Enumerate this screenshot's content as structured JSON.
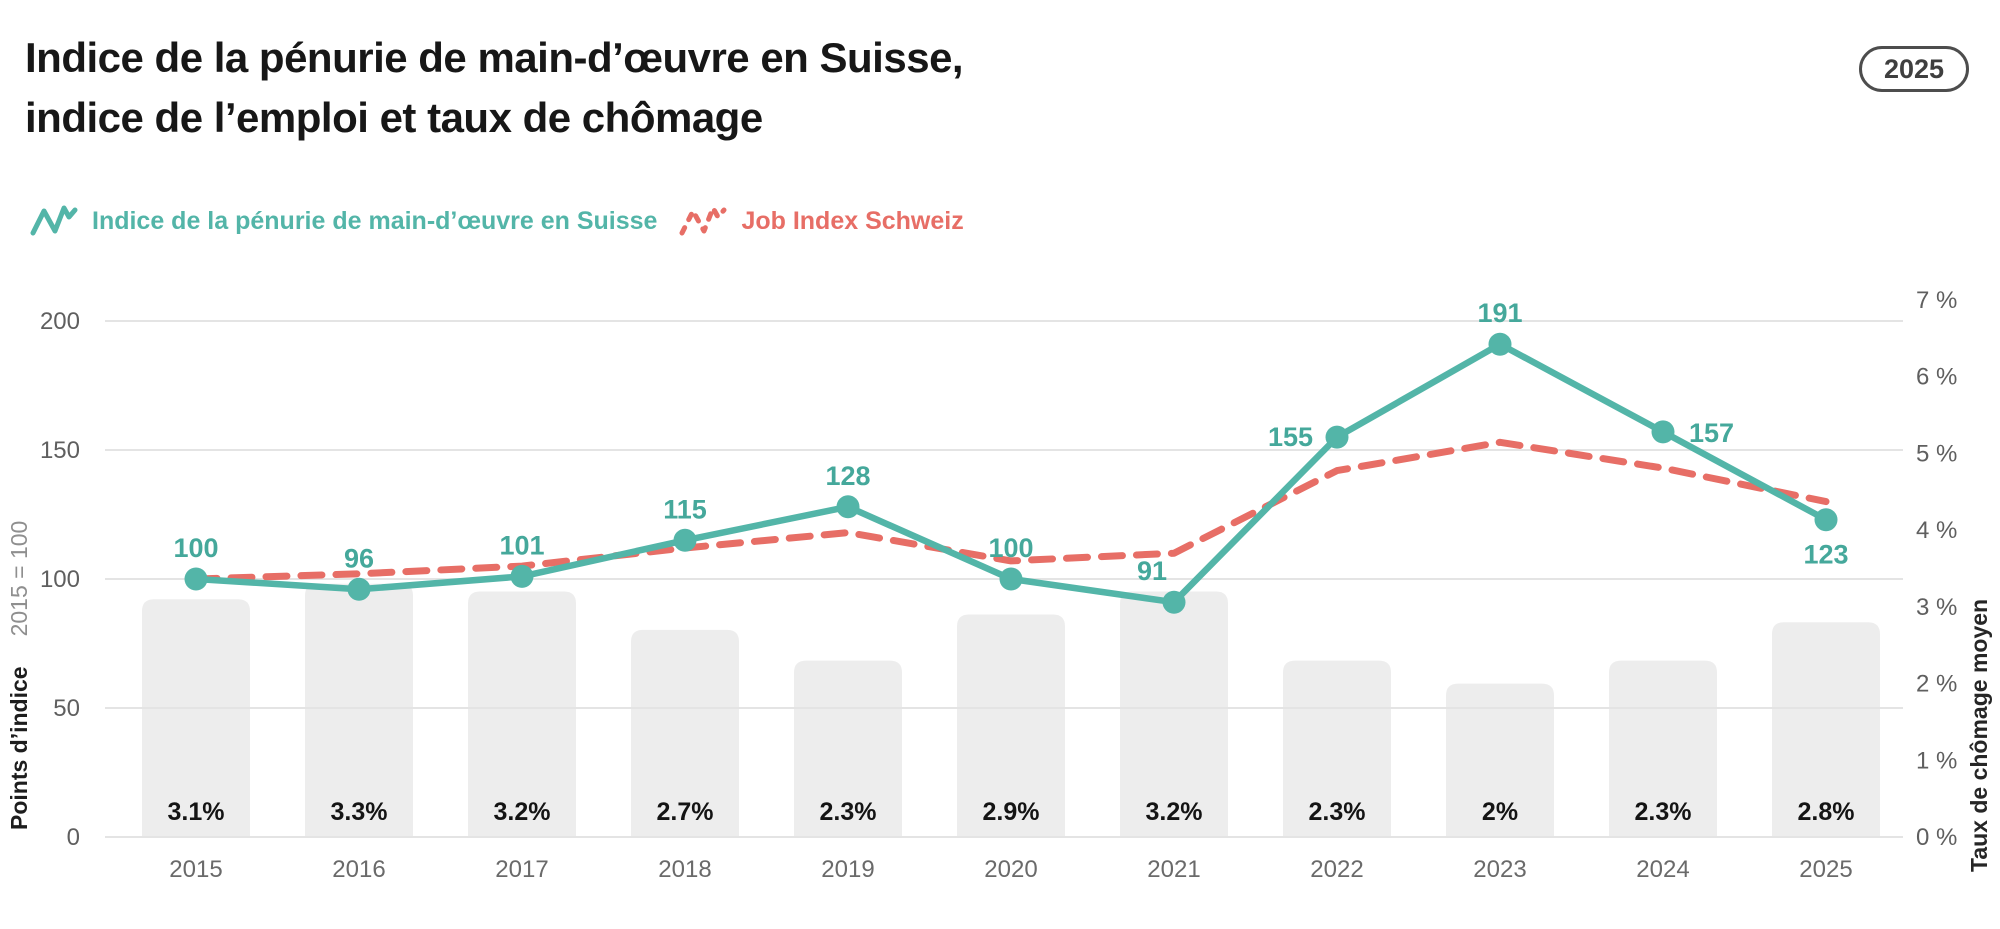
{
  "header": {
    "title_line1": "Indice de la pénurie de main-d’œuvre en Suisse,",
    "title_line2": "indice de l’emploi et taux de chômage",
    "year_badge": "2025"
  },
  "legend": {
    "item1": {
      "label": "Indice de la pénurie de main-d’œuvre en Suisse",
      "color": "#53b5a8",
      "style": "solid"
    },
    "item2": {
      "label": "Job Index Schweiz",
      "color": "#e76e66",
      "style": "dashed"
    }
  },
  "axes": {
    "left": {
      "caption": "Points d’indice",
      "caption_sub": "2015 = 100",
      "tick_labels": [
        "0",
        "50",
        "100",
        "150",
        "200"
      ]
    },
    "right": {
      "caption": "Taux de chômage moyen",
      "tick_labels": [
        "0 %",
        "1 %",
        "2 %",
        "3 %",
        "4 %",
        "5 %",
        "6 %",
        "7 %"
      ]
    }
  },
  "colors": {
    "teal": "#53b5a8",
    "red": "#e76e66",
    "bar_fill": "#ededed",
    "grid": "#e4e4e4",
    "bar_label": "#141414",
    "tick_text": "#5f5f5f"
  },
  "chart_data": {
    "type": "combo",
    "title": "Indice de la pénurie de main-d’œuvre en Suisse, indice de l’emploi et taux de chômage",
    "badge": "2025",
    "categories": [
      "2015",
      "2016",
      "2017",
      "2018",
      "2019",
      "2020",
      "2021",
      "2022",
      "2023",
      "2024",
      "2025"
    ],
    "series": [
      {
        "name": "Indice de la pénurie de main-d’œuvre en Suisse",
        "type": "line",
        "style": "solid",
        "axis": "left",
        "color": "#53b5a8",
        "values": [
          100,
          96,
          101,
          115,
          128,
          100,
          91,
          155,
          191,
          157,
          123
        ],
        "point_labels": [
          "100",
          "96",
          "101",
          "115",
          "128",
          "100",
          "91",
          "155",
          "191",
          "157",
          "123"
        ],
        "label_positions": [
          "above",
          "above",
          "above",
          "above",
          "above",
          "above",
          "above-left",
          "left",
          "above",
          "right",
          "below"
        ]
      },
      {
        "name": "Job Index Schweiz",
        "type": "line",
        "style": "dashed",
        "axis": "left",
        "color": "#e76e66",
        "values": [
          100,
          102,
          105,
          112,
          118,
          107,
          110,
          142,
          153,
          143,
          130
        ],
        "values_note": "unlabeled in chart; estimated from line position against left axis"
      },
      {
        "name": "Taux de chômage moyen (barres)",
        "type": "bar",
        "axis": "right",
        "color": "#ededed",
        "values": [
          3.1,
          3.3,
          3.2,
          2.7,
          2.3,
          2.9,
          3.2,
          2.3,
          2,
          2.3,
          2.8
        ],
        "bar_labels": [
          "3.1%",
          "3.3%",
          "3.2%",
          "2.7%",
          "2.3%",
          "2.9%",
          "3.2%",
          "2.3%",
          "2%",
          "2.3%",
          "2.8%"
        ]
      }
    ],
    "left_axis": {
      "min": 0,
      "max": 200,
      "ticks": [
        0,
        50,
        100,
        150,
        200
      ],
      "title": "Points d’indice",
      "subtitle": "2015 = 100"
    },
    "right_axis": {
      "min": 0,
      "max": 7,
      "ticks": [
        0,
        1,
        2,
        3,
        4,
        5,
        6,
        7
      ],
      "unit": "%",
      "title": "Taux de chômage moyen"
    },
    "grid": "horizontal",
    "legend_position": "top-left"
  }
}
